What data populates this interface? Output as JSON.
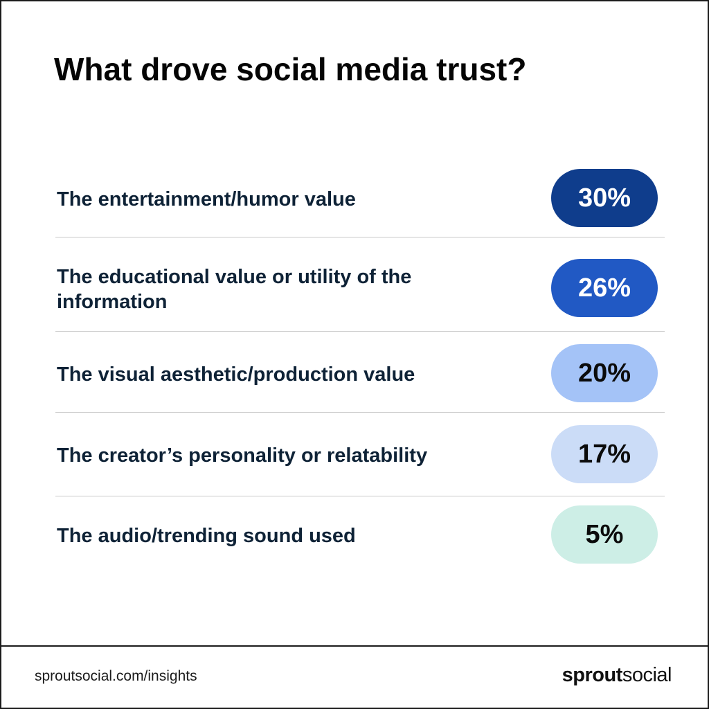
{
  "title": "What drove social media trust?",
  "chart_data": {
    "type": "table",
    "title": "What drove social media trust?",
    "categories": [
      "The entertainment/humor value",
      "The educational value or utility of the information",
      "The visual aesthetic/production value",
      "The creator’s personality or relatability",
      "The audio/trending sound used"
    ],
    "values": [
      30,
      26,
      20,
      17,
      5
    ],
    "value_labels": [
      "30%",
      "26%",
      "20%",
      "17%",
      "5%"
    ],
    "unit": "%",
    "pill_colors": [
      "#0f3d8c",
      "#2159c4",
      "#a4c3f7",
      "#cbdcf7",
      "#cdeee6"
    ],
    "pill_text_colors": [
      "#ffffff",
      "#ffffff",
      "#0b0b0b",
      "#0b0b0b",
      "#0b0b0b"
    ]
  },
  "footer": {
    "url": "sproutsocial.com/insights",
    "logo_bold": "sprout",
    "logo_light": "social"
  }
}
